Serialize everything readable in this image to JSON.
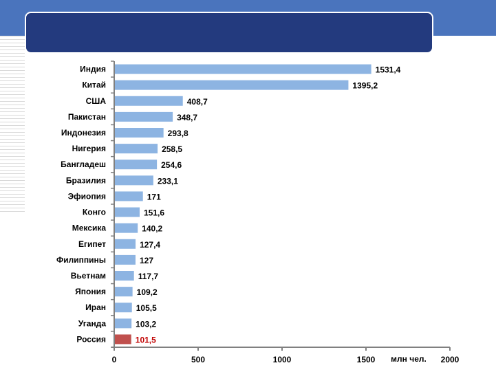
{
  "chart_data": {
    "type": "bar",
    "orientation": "horizontal",
    "title": "",
    "categories": [
      "Индия",
      "Китай",
      "США",
      "Пакистан",
      "Индонезия",
      "Нигерия",
      "Бангладеш",
      "Бразилия",
      "Эфиопия",
      "Конго",
      "Мексика",
      "Египет",
      "Филиппины",
      "Вьетнам",
      "Япония",
      "Иран",
      "Уганда",
      "Россия"
    ],
    "values": [
      1531.4,
      1395.2,
      408.7,
      348.7,
      293.8,
      258.5,
      254.6,
      233.1,
      171,
      151.6,
      140.2,
      127.4,
      127,
      117.7,
      109.2,
      105.5,
      103.2,
      101.5
    ],
    "value_labels": [
      "1531,4",
      "1395,2",
      "408,7",
      "348,7",
      "293,8",
      "258,5",
      "254,6",
      "233,1",
      "171",
      "151,6",
      "140,2",
      "127,4",
      "127",
      "117,7",
      "109,2",
      "105,5",
      "103,2",
      "101,5"
    ],
    "highlight_category": "Россия",
    "xlabel": "млн чел.",
    "ylabel": "",
    "xlim": [
      0,
      2000
    ],
    "xticks": [
      0,
      500,
      1000,
      1500,
      2000
    ],
    "xtick_labels": [
      "0",
      "500",
      "1000",
      "1500",
      "2000"
    ],
    "grid": false,
    "colors": {
      "bar": "#8db4e2",
      "highlight": "#c0504d",
      "highlight_label": "#c00000",
      "header": "#233a7e",
      "band": "#4a74bd"
    }
  }
}
